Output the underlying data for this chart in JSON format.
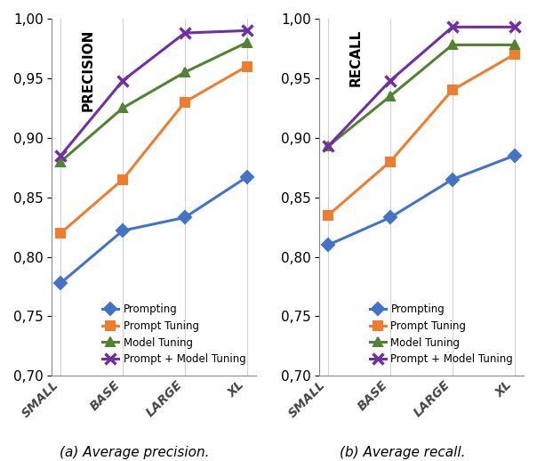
{
  "x_labels": [
    "SMALL",
    "BASE",
    "LARGE",
    "XL"
  ],
  "precision": {
    "Prompting": [
      0.778,
      0.822,
      0.833,
      0.867
    ],
    "Prompt Tuning": [
      0.82,
      0.865,
      0.93,
      0.96
    ],
    "Model Tuning": [
      0.88,
      0.925,
      0.955,
      0.98
    ],
    "Prompt + Model Tuning": [
      0.885,
      0.948,
      0.988,
      0.99
    ]
  },
  "recall": {
    "Prompting": [
      0.81,
      0.833,
      0.865,
      0.885
    ],
    "Prompt Tuning": [
      0.835,
      0.88,
      0.94,
      0.97
    ],
    "Model Tuning": [
      0.893,
      0.935,
      0.978,
      0.978
    ],
    "Prompt + Model Tuning": [
      0.893,
      0.948,
      0.993,
      0.993
    ]
  },
  "colors": {
    "Prompting": "#4472C4",
    "Prompt Tuning": "#ED7D31",
    "Model Tuning": "#548235",
    "Prompt + Model Tuning": "#7030A0"
  },
  "markers": {
    "Prompting": "D",
    "Prompt Tuning": "s",
    "Model Tuning": "^",
    "Prompt + Model Tuning": "x"
  },
  "ylim": [
    0.7,
    1.0
  ],
  "yticks": [
    0.7,
    0.75,
    0.8,
    0.85,
    0.9,
    0.95,
    1.0
  ],
  "caption_a": "(a) Average precision.",
  "caption_b": "(b) Average recall.",
  "ylabel_a": "PRECISION",
  "ylabel_b": "RECALL"
}
